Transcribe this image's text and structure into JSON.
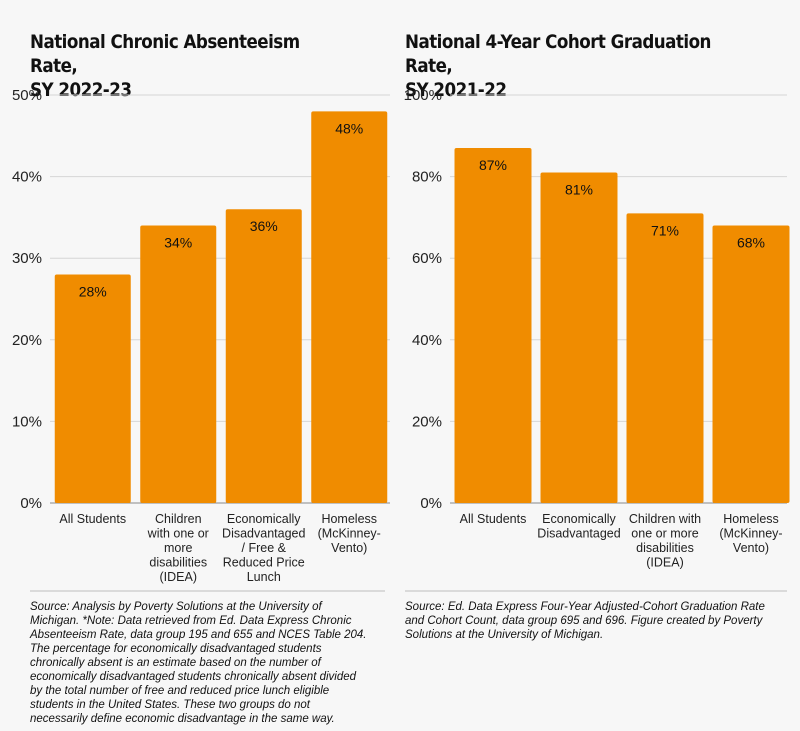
{
  "chart_data": [
    {
      "type": "bar",
      "title": [
        "National Chronic Absenteeism Rate,",
        "SY 2022-23"
      ],
      "categories": [
        [
          "All Students"
        ],
        [
          "Children",
          "with one or",
          "more",
          "disabilities",
          "(IDEA)"
        ],
        [
          "Economically",
          "Disadvantaged",
          "/ Free &",
          "Reduced Price",
          "Lunch"
        ],
        [
          "Homeless",
          "(McKinney-",
          "Vento)"
        ]
      ],
      "values": [
        28,
        34,
        36,
        48
      ],
      "data_labels": [
        "28%",
        "34%",
        "36%",
        "48%"
      ],
      "ylim": [
        0,
        50
      ],
      "yticks": [
        "0%",
        "10%",
        "20%",
        "30%",
        "40%",
        "50%"
      ],
      "grid": true,
      "bar_color": "#f08c00",
      "source": "Source: Analysis by Poverty Solutions at the University of Michigan. *Note: Data retrieved from Ed. Data Express Chronic Absenteeism Rate, data group 195 and 655 and NCES Table 204. The percentage for economically disadvantaged students chronically absent is an estimate based on the number of economically disadvantaged students chronically absent divided by the total number of free and reduced price lunch eligible students in the United States. These two groups do not necessarily define economic disadvantage in the same way."
    },
    {
      "type": "bar",
      "title": [
        "National 4-Year Cohort Graduation Rate,",
        "SY 2021-22"
      ],
      "categories": [
        [
          "All Students"
        ],
        [
          "Economically",
          "Disadvantaged"
        ],
        [
          "Children with",
          "one or more",
          "disabilities",
          "(IDEA)"
        ],
        [
          "Homeless",
          "(McKinney-",
          "Vento)"
        ]
      ],
      "values": [
        87,
        81,
        71,
        68
      ],
      "data_labels": [
        "87%",
        "81%",
        "71%",
        "68%"
      ],
      "ylim": [
        0,
        100
      ],
      "yticks": [
        "0%",
        "20%",
        "40%",
        "60%",
        "80%",
        "100%"
      ],
      "grid": true,
      "bar_color": "#f08c00",
      "source": "Source: Ed. Data Express Four-Year Adjusted-Cohort Graduation Rate and Cohort Count, data group 695 and 696. Figure created by Poverty Solutions at the University of Michigan."
    }
  ]
}
